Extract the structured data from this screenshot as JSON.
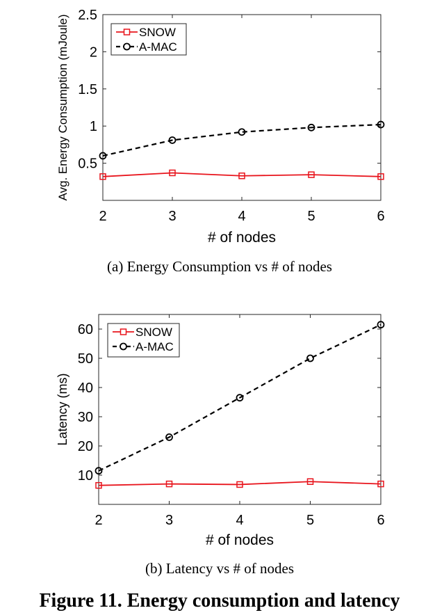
{
  "figure_caption": "Figure 11. Energy consumption and latency",
  "colors": {
    "snow": "#e8141c",
    "amac": "#000000",
    "axis": "#262626"
  },
  "chart_data": [
    {
      "type": "line",
      "subcaption": "(a)  Energy Consumption vs # of nodes",
      "xlabel": "# of nodes",
      "ylabel": "Avg. Energy Consumption (mJoule)",
      "xlim": [
        2,
        6
      ],
      "ylim": [
        0,
        2.5
      ],
      "xticks": [
        2,
        3,
        4,
        5,
        6
      ],
      "yticks": [
        0.5,
        1,
        1.5,
        2,
        2.5
      ],
      "ytick_labels": [
        "0.5",
        "1",
        "1.5",
        "2",
        "2.5"
      ],
      "x": [
        2,
        3,
        4,
        5,
        6
      ],
      "legend_placement": "top-left",
      "series": [
        {
          "name": "SNOW",
          "values": [
            0.32,
            0.37,
            0.33,
            0.345,
            0.32
          ],
          "marker": "square",
          "line": "solid",
          "color": "#e8141c"
        },
        {
          "name": "A-MAC",
          "values": [
            0.6,
            0.81,
            0.92,
            0.98,
            1.02
          ],
          "marker": "circle",
          "line": "dashed",
          "color": "#000000"
        }
      ]
    },
    {
      "type": "line",
      "subcaption": "(b)  Latency vs # of nodes",
      "xlabel": "# of nodes",
      "ylabel": "Latency (ms)",
      "xlim": [
        2,
        6
      ],
      "ylim": [
        0,
        65
      ],
      "xticks": [
        2,
        3,
        4,
        5,
        6
      ],
      "yticks": [
        10,
        20,
        30,
        40,
        50,
        60
      ],
      "ytick_labels": [
        "10",
        "20",
        "30",
        "40",
        "50",
        "60"
      ],
      "x": [
        2,
        3,
        4,
        5,
        6
      ],
      "legend_placement": "top-left",
      "series": [
        {
          "name": "SNOW",
          "values": [
            6.5,
            7.0,
            6.8,
            7.8,
            7.0
          ],
          "marker": "square",
          "line": "solid",
          "color": "#e8141c"
        },
        {
          "name": "A-MAC",
          "values": [
            11.5,
            23,
            36.5,
            50,
            61.5
          ],
          "marker": "circle",
          "line": "dashed",
          "color": "#000000"
        }
      ]
    }
  ]
}
